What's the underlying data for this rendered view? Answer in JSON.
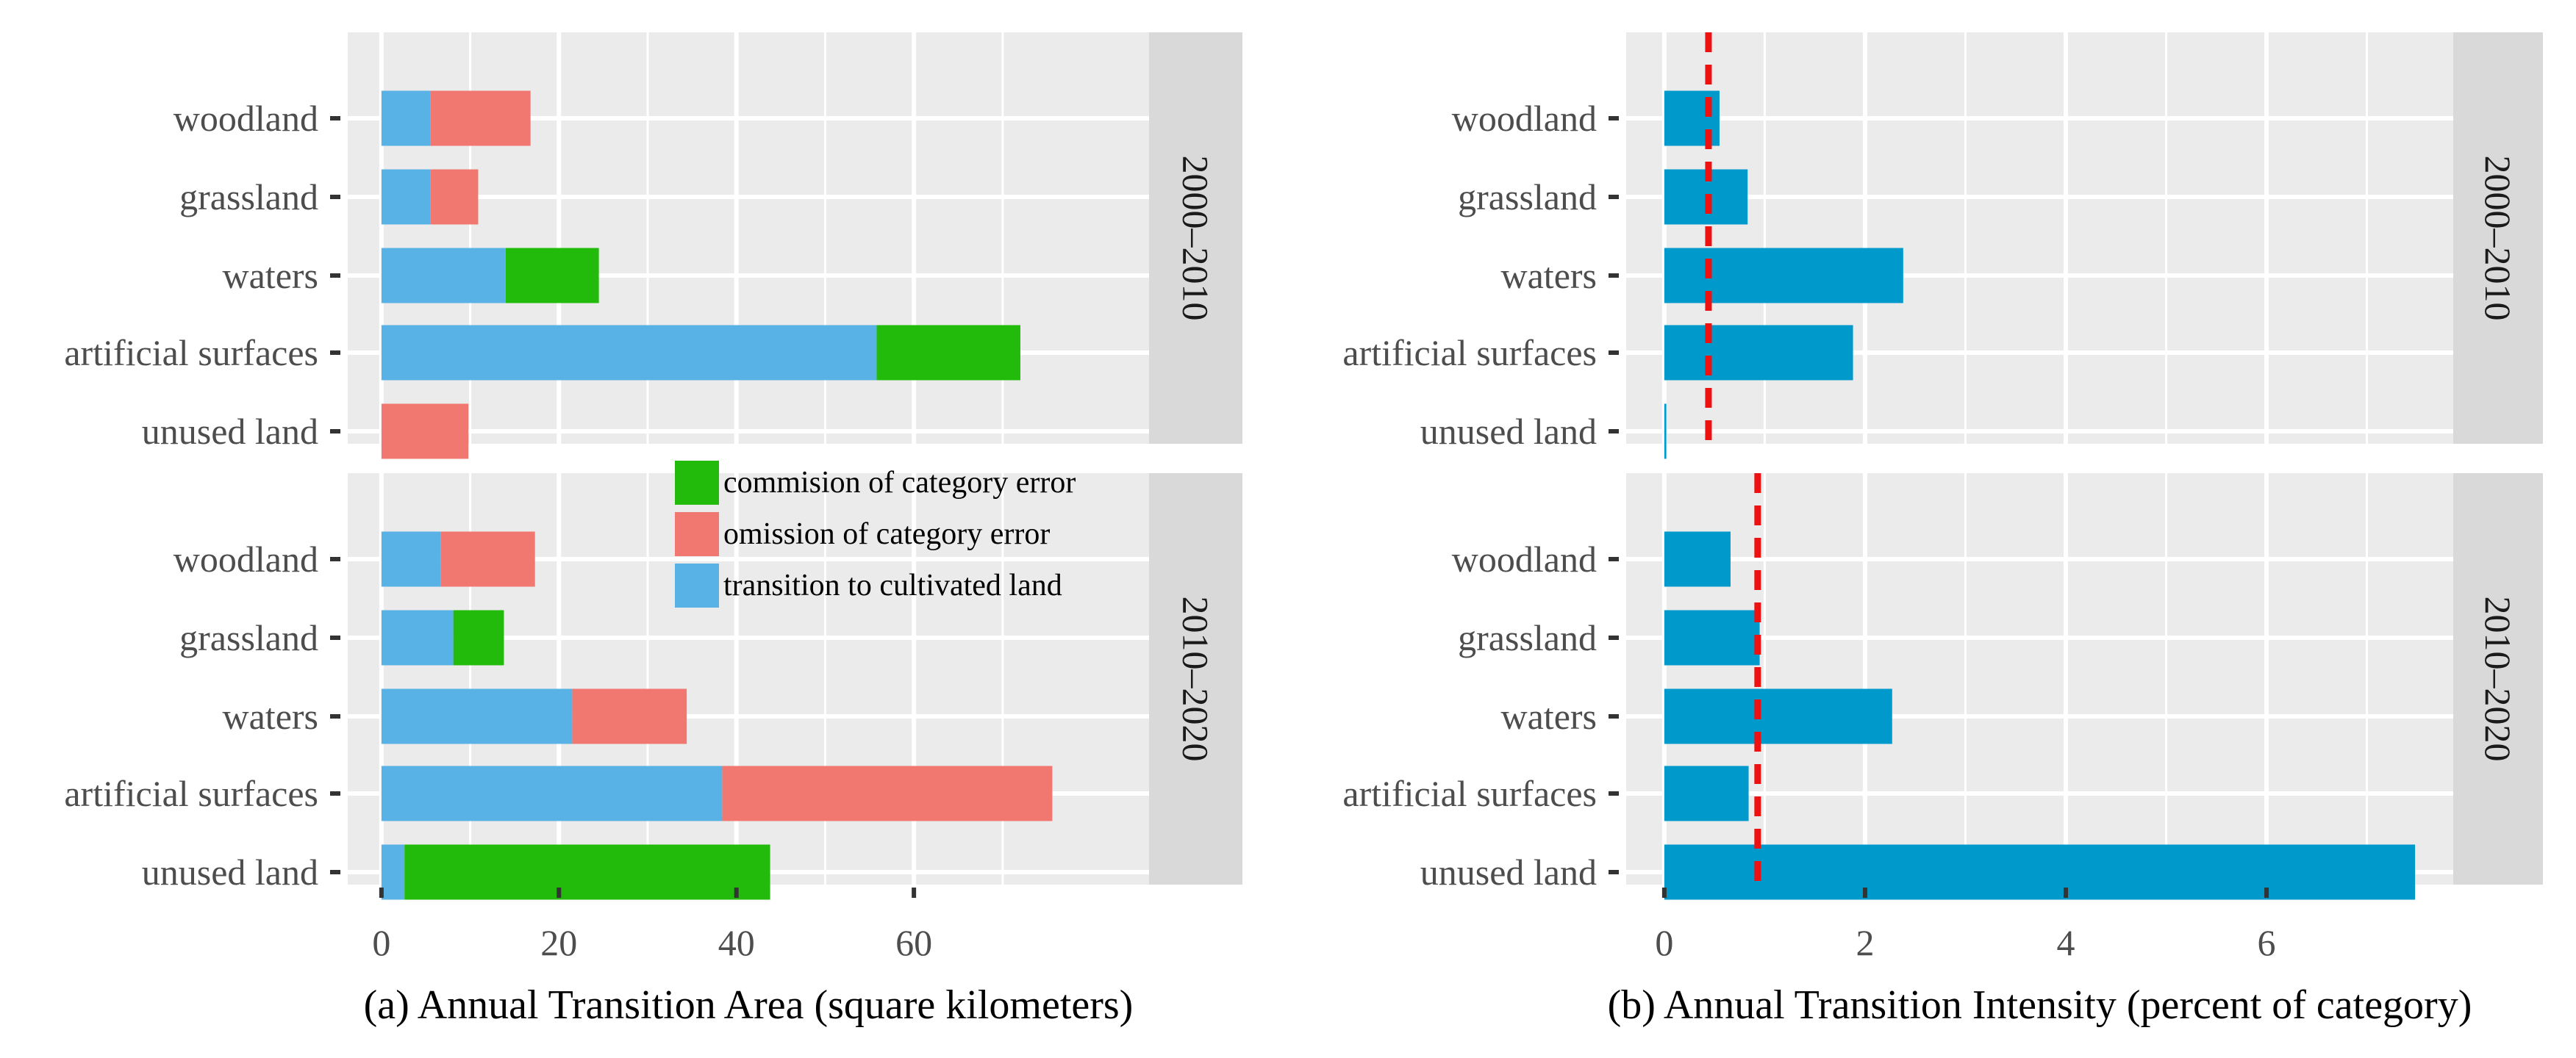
{
  "chart_data": [
    {
      "id": "a",
      "type": "bar",
      "orientation": "horizontal",
      "stacked": true,
      "xlabel": "(a) Annual Transition Area (square kilometers)",
      "xticks": [
        0,
        20,
        40,
        60
      ],
      "xlim": [
        -3.8,
        86.5
      ],
      "categories": [
        "woodland",
        "grassland",
        "waters",
        "artificial surfaces",
        "unused land"
      ],
      "legend": {
        "placement": "inside-top-right",
        "entries": [
          {
            "name": "commision of category error",
            "color": "#22bb0c"
          },
          {
            "name": "omission of category error",
            "color": "#f07870"
          },
          {
            "name": "transition to cultivated land",
            "color": "#58b2e6"
          }
        ]
      },
      "panels": [
        {
          "strip": "2000–2010",
          "rows": [
            {
              "category": "woodland",
              "segments": [
                {
                  "series": "transition to cultivated land",
                  "value": 5.5
                },
                {
                  "series": "omission of category error",
                  "value": 11.3
                }
              ]
            },
            {
              "category": "grassland",
              "segments": [
                {
                  "series": "transition to cultivated land",
                  "value": 5.5
                },
                {
                  "series": "omission of category error",
                  "value": 5.4
                }
              ]
            },
            {
              "category": "waters",
              "segments": [
                {
                  "series": "transition to cultivated land",
                  "value": 14.0
                },
                {
                  "series": "commision of category error",
                  "value": 10.5
                }
              ]
            },
            {
              "category": "artificial surfaces",
              "segments": [
                {
                  "series": "transition to cultivated land",
                  "value": 55.8
                },
                {
                  "series": "commision of category error",
                  "value": 16.2
                }
              ]
            },
            {
              "category": "unused land",
              "segments": [
                {
                  "series": "omission of category error",
                  "value": 9.8
                }
              ]
            }
          ]
        },
        {
          "strip": "2010–2020",
          "rows": [
            {
              "category": "woodland",
              "segments": [
                {
                  "series": "transition to cultivated land",
                  "value": 6.7
                },
                {
                  "series": "omission of category error",
                  "value": 10.6
                }
              ]
            },
            {
              "category": "grassland",
              "segments": [
                {
                  "series": "transition to cultivated land",
                  "value": 8.1
                },
                {
                  "series": "commision of category error",
                  "value": 5.7
                }
              ]
            },
            {
              "category": "waters",
              "segments": [
                {
                  "series": "transition to cultivated land",
                  "value": 21.5
                },
                {
                  "series": "omission of category error",
                  "value": 12.9
                }
              ]
            },
            {
              "category": "artificial surfaces",
              "segments": [
                {
                  "series": "transition to cultivated land",
                  "value": 38.4
                },
                {
                  "series": "omission of category error",
                  "value": 37.2
                }
              ]
            },
            {
              "category": "unused land",
              "segments": [
                {
                  "series": "transition to cultivated land",
                  "value": 2.6
                },
                {
                  "series": "commision of category error",
                  "value": 41.2
                }
              ]
            }
          ]
        }
      ]
    },
    {
      "id": "b",
      "type": "bar",
      "orientation": "horizontal",
      "stacked": false,
      "xlabel": "(b) Annual Transition Intensity (percent of category)",
      "xticks": [
        0,
        2,
        4,
        6
      ],
      "xlim": [
        -0.38,
        7.86
      ],
      "categories": [
        "woodland",
        "grassland",
        "waters",
        "artificial surfaces",
        "unused land"
      ],
      "bar_color": "#0099cc",
      "reference_line_color": "#ee1111",
      "panels": [
        {
          "strip": "2000–2010",
          "reference_line": 0.44,
          "rows": [
            {
              "category": "woodland",
              "value": 0.55
            },
            {
              "category": "grassland",
              "value": 0.83
            },
            {
              "category": "waters",
              "value": 2.38
            },
            {
              "category": "artificial surfaces",
              "value": 1.88
            },
            {
              "category": "unused land",
              "value": 0.02
            }
          ]
        },
        {
          "strip": "2010–2020",
          "reference_line": 0.93,
          "rows": [
            {
              "category": "woodland",
              "value": 0.66
            },
            {
              "category": "grassland",
              "value": 0.95
            },
            {
              "category": "waters",
              "value": 2.27
            },
            {
              "category": "artificial surfaces",
              "value": 0.84
            },
            {
              "category": "unused land",
              "value": 7.48
            }
          ]
        }
      ]
    }
  ]
}
